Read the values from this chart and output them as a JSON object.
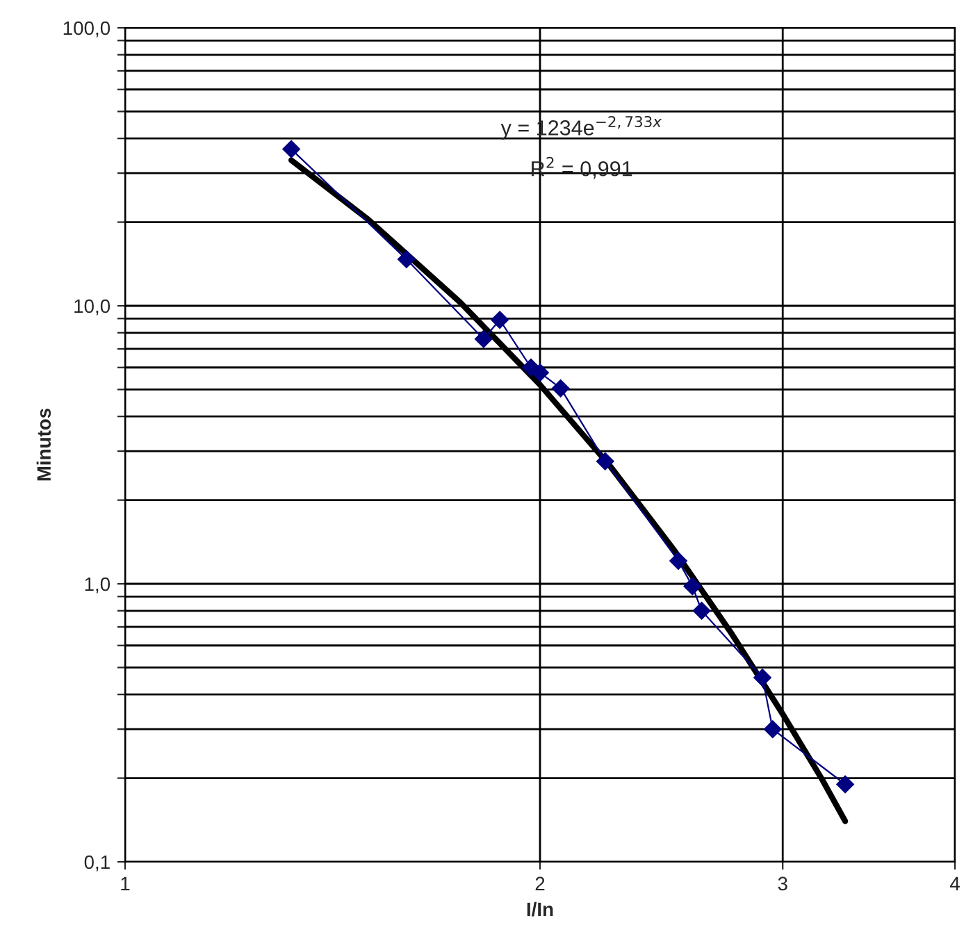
{
  "chart_data": {
    "type": "line",
    "xlabel": "I/In",
    "ylabel": "Minutos",
    "log": "xy",
    "grid": true,
    "legend": false,
    "xlim": [
      1,
      4
    ],
    "ylim": [
      0.1,
      100
    ],
    "xticks": [
      1,
      2,
      3,
      4
    ],
    "yticks": [
      {
        "value": 0.1,
        "label": "0,1"
      },
      {
        "value": 0.2,
        "label": null
      },
      {
        "value": 0.3,
        "label": null
      },
      {
        "value": 0.4,
        "label": null
      },
      {
        "value": 0.5,
        "label": null
      },
      {
        "value": 0.6,
        "label": null
      },
      {
        "value": 0.7,
        "label": null
      },
      {
        "value": 0.8,
        "label": null
      },
      {
        "value": 0.9,
        "label": null
      },
      {
        "value": 1,
        "label": "1,0"
      },
      {
        "value": 2,
        "label": null
      },
      {
        "value": 3,
        "label": null
      },
      {
        "value": 4,
        "label": null
      },
      {
        "value": 5,
        "label": null
      },
      {
        "value": 6,
        "label": null
      },
      {
        "value": 7,
        "label": null
      },
      {
        "value": 8,
        "label": null
      },
      {
        "value": 9,
        "label": null
      },
      {
        "value": 10,
        "label": "10,0"
      },
      {
        "value": 20,
        "label": null
      },
      {
        "value": 30,
        "label": null
      },
      {
        "value": 40,
        "label": null
      },
      {
        "value": 50,
        "label": null
      },
      {
        "value": 60,
        "label": null
      },
      {
        "value": 70,
        "label": null
      },
      {
        "value": 80,
        "label": null
      },
      {
        "value": 90,
        "label": null
      },
      {
        "value": 100,
        "label": "100,0"
      }
    ],
    "series": [
      {
        "color": "#000080",
        "marker": "diamond",
        "line_style": "solid",
        "x": [
          1.32,
          1.6,
          1.82,
          1.87,
          1.97,
          2.0,
          2.07,
          2.23,
          2.52,
          2.58,
          2.62,
          2.9,
          2.95,
          3.33
        ],
        "values": [
          36.6,
          14.7,
          7.6,
          8.9,
          6.0,
          5.75,
          5.05,
          2.76,
          1.21,
          0.98,
          0.8,
          0.46,
          0.3,
          0.19
        ]
      },
      {
        "color": "#000000",
        "marker": "none",
        "line_style": "solid",
        "x": [
          1.32,
          1.5,
          1.75,
          2.0,
          2.25,
          2.5,
          2.75,
          3.0,
          3.2,
          3.33
        ],
        "values": [
          33.4,
          20.5,
          10.3,
          5.2,
          2.64,
          1.33,
          0.67,
          0.34,
          0.2,
          0.14
        ]
      }
    ],
    "annotations": [
      "y = 1234e$^{−2,733x}$",
      "R$^{2}$ = 0,991"
    ]
  }
}
